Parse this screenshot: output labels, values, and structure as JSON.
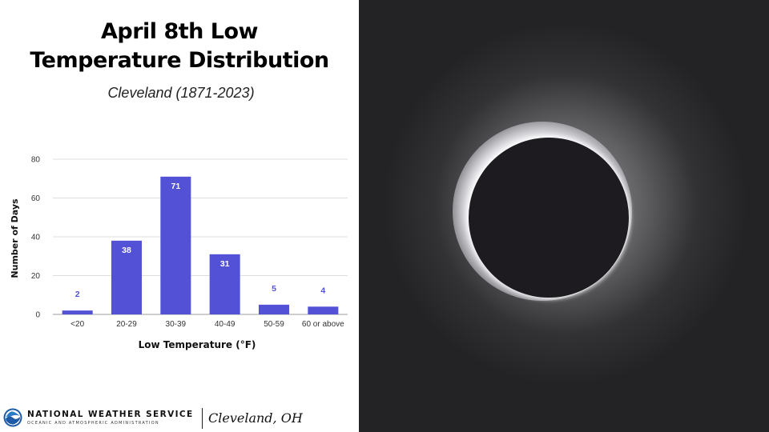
{
  "title_line1": "April 8th Low",
  "title_line2": "Temperature Distribution",
  "subtitle": "Cleveland (1871-2023)",
  "chart_data": {
    "type": "bar",
    "categories": [
      "<20",
      "20-29",
      "30-39",
      "40-49",
      "50-59",
      "60 or above"
    ],
    "values": [
      2,
      38,
      71,
      31,
      5,
      4
    ],
    "xlabel": "Low Temperature (°F)",
    "ylabel": "Number of Days",
    "ylim": [
      0,
      80
    ],
    "yticks": [
      0,
      20,
      40,
      60,
      80
    ],
    "grid": true,
    "data_labels": true,
    "bar_color": "#5352d6",
    "label_color_inside": "#ffffff",
    "label_color_outside": "#5352d6"
  },
  "footer": {
    "org_name": "NATIONAL WEATHER SERVICE",
    "org_subtitle": "OCEANIC AND ATMOSPHERIC ADMINISTRATION",
    "office": "Cleveland, OH",
    "logo_icon": "noaa-logo-icon"
  },
  "photo": {
    "subject": "eclipse-photo",
    "background_color": "#232224"
  }
}
